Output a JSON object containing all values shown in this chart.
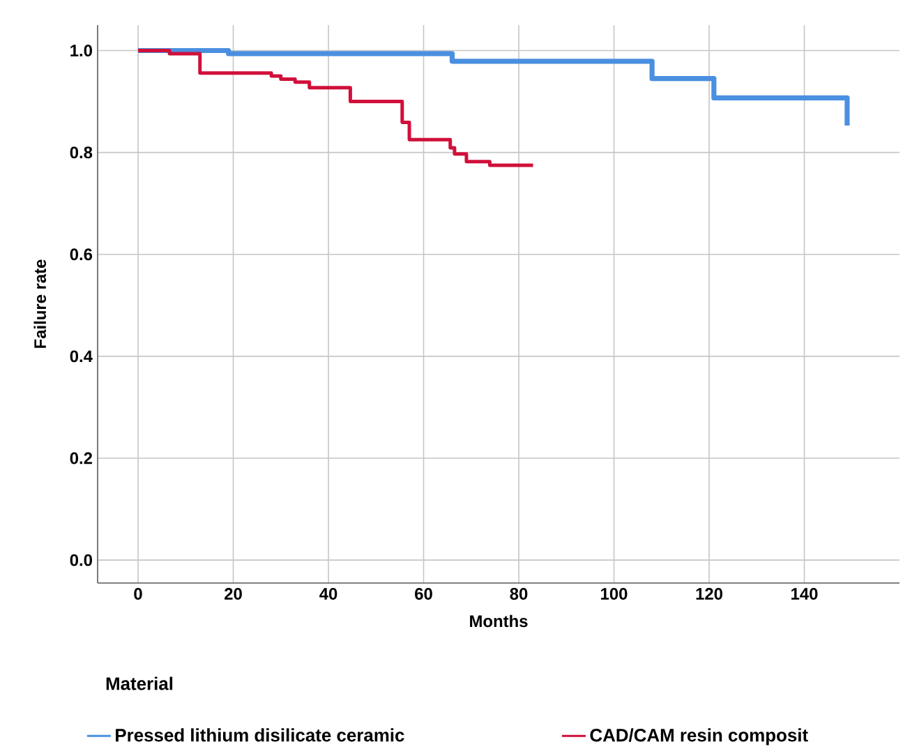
{
  "chart_data": {
    "type": "step",
    "xlabel": "Months",
    "ylabel": "Failure rate",
    "legend_title": "Material",
    "xlim": [
      -8.5,
      160
    ],
    "ylim": [
      -0.045,
      1.05
    ],
    "xticks": [
      0,
      20,
      40,
      60,
      80,
      100,
      120,
      140
    ],
    "yticks": [
      {
        "value": 0,
        "label": "0.0"
      },
      {
        "value": 0.2,
        "label": "0.2"
      },
      {
        "value": 0.4,
        "label": "0.4"
      },
      {
        "value": 0.6,
        "label": "0.6"
      },
      {
        "value": 0.8,
        "label": "0.8"
      },
      {
        "value": 1,
        "label": "1.0"
      }
    ],
    "grid": true,
    "legend": "bottom",
    "series": [
      {
        "name": "Pressed lithium disilicate ceramic",
        "color": "#4a8fe0",
        "x": [
          0,
          19,
          66,
          108,
          121,
          149,
          149
        ],
        "values": [
          1.0,
          0.994,
          0.979,
          0.945,
          0.907,
          0.853,
          0.853
        ]
      },
      {
        "name": "CAD/CAM resin composit",
        "color": "#d0103a",
        "x": [
          0,
          6.6,
          13,
          28,
          30,
          33,
          36,
          44.6,
          55.5,
          57,
          65.6,
          66.5,
          69,
          73.9,
          83
        ],
        "values": [
          1.0,
          0.994,
          0.956,
          0.95,
          0.944,
          0.938,
          0.927,
          0.9,
          0.859,
          0.825,
          0.809,
          0.797,
          0.782,
          0.775,
          0.775
        ]
      }
    ]
  }
}
